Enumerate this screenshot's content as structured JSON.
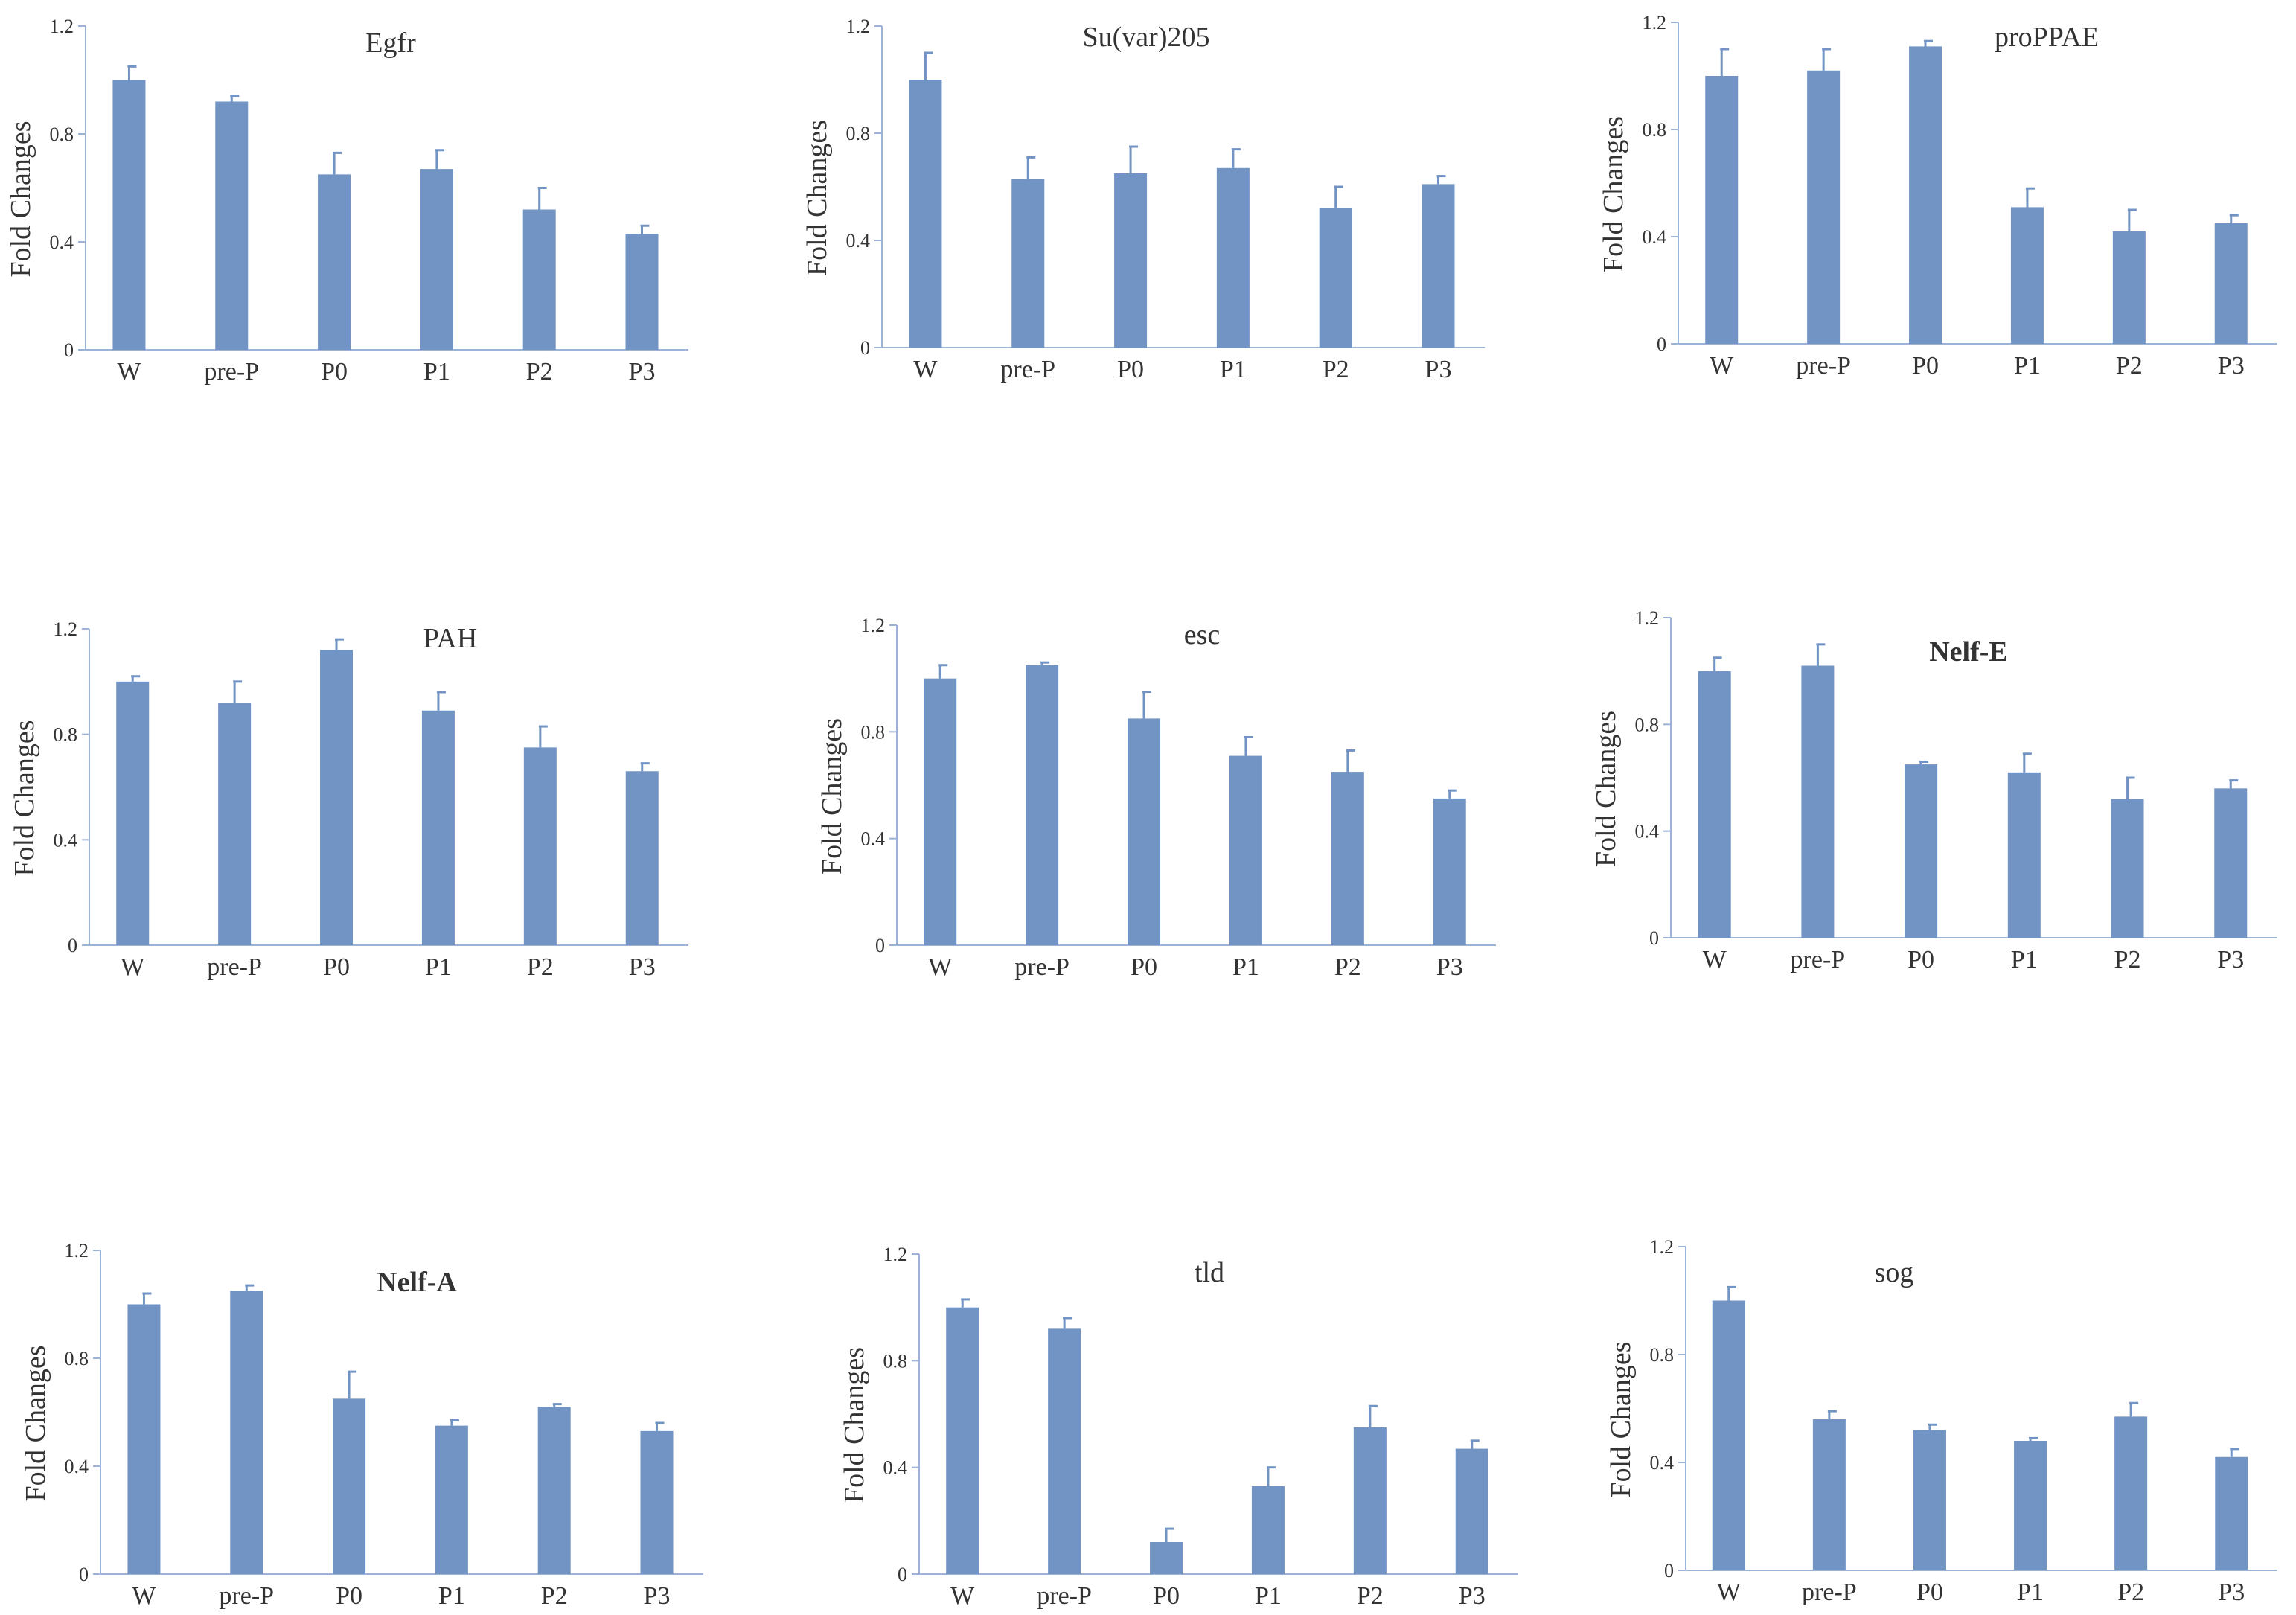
{
  "style": {
    "bar_color": "#7294c4",
    "axis_color": "#9db3d6",
    "text_color": "#333333"
  },
  "chart_data": [
    {
      "type": "bar",
      "title": "Egfr",
      "title_bold": false,
      "ylabel": "Fold Changes",
      "categories": [
        "W",
        "pre-P",
        "P0",
        "P1",
        "P2",
        "P3"
      ],
      "yticks": [
        "0",
        "0.4",
        "0.8",
        "1.2"
      ],
      "ylim": [
        0,
        1.2
      ],
      "values": [
        1.0,
        0.92,
        0.65,
        0.67,
        0.52,
        0.43
      ],
      "errors": [
        0.05,
        0.02,
        0.08,
        0.07,
        0.08,
        0.03
      ]
    },
    {
      "type": "bar",
      "title": "Su(var)205",
      "title_bold": false,
      "ylabel": "Fold Changes",
      "categories": [
        "W",
        "pre-P",
        "P0",
        "P1",
        "P2",
        "P3"
      ],
      "yticks": [
        "0",
        "0.4",
        "0.8",
        "1.2"
      ],
      "ylim": [
        0,
        1.2
      ],
      "values": [
        1.0,
        0.63,
        0.65,
        0.67,
        0.52,
        0.61
      ],
      "errors": [
        0.1,
        0.08,
        0.1,
        0.07,
        0.08,
        0.03
      ]
    },
    {
      "type": "bar",
      "title": "proPPAE",
      "title_bold": false,
      "ylabel": "Fold Changes",
      "categories": [
        "W",
        "pre-P",
        "P0",
        "P1",
        "P2",
        "P3"
      ],
      "yticks": [
        "0",
        "0.4",
        "0.8",
        "1.2"
      ],
      "ylim": [
        0,
        1.2
      ],
      "values": [
        1.0,
        1.02,
        1.11,
        0.51,
        0.42,
        0.45
      ],
      "errors": [
        0.1,
        0.08,
        0.02,
        0.07,
        0.08,
        0.03
      ]
    },
    {
      "type": "bar",
      "title": "PAH",
      "title_bold": false,
      "ylabel": "Fold Changes",
      "categories": [
        "W",
        "pre-P",
        "P0",
        "P1",
        "P2",
        "P3"
      ],
      "yticks": [
        "0",
        "0.4",
        "0.8",
        "1.2"
      ],
      "ylim": [
        0,
        1.2
      ],
      "values": [
        1.0,
        0.92,
        1.12,
        0.89,
        0.75,
        0.66
      ],
      "errors": [
        0.02,
        0.08,
        0.04,
        0.07,
        0.08,
        0.03
      ]
    },
    {
      "type": "bar",
      "title": "esc",
      "title_bold": false,
      "ylabel": "Fold Changes",
      "categories": [
        "W",
        "pre-P",
        "P0",
        "P1",
        "P2",
        "P3"
      ],
      "yticks": [
        "0",
        "0.4",
        "0.8",
        "1.2"
      ],
      "ylim": [
        0,
        1.2
      ],
      "values": [
        1.0,
        1.05,
        0.85,
        0.71,
        0.65,
        0.55
      ],
      "errors": [
        0.05,
        0.01,
        0.1,
        0.07,
        0.08,
        0.03
      ]
    },
    {
      "type": "bar",
      "title": "Nelf-E",
      "title_bold": true,
      "ylabel": "Fold Changes",
      "categories": [
        "W",
        "pre-P",
        "P0",
        "P1",
        "P2",
        "P3"
      ],
      "yticks": [
        "0",
        "0.4",
        "0.8",
        "1.2"
      ],
      "ylim": [
        0,
        1.2
      ],
      "values": [
        1.0,
        1.02,
        0.65,
        0.62,
        0.52,
        0.56
      ],
      "errors": [
        0.05,
        0.08,
        0.01,
        0.07,
        0.08,
        0.03
      ]
    },
    {
      "type": "bar",
      "title": "Nelf-A",
      "title_bold": true,
      "ylabel": "Fold Changes",
      "categories": [
        "W",
        "pre-P",
        "P0",
        "P1",
        "P2",
        "P3"
      ],
      "yticks": [
        "0",
        "0.4",
        "0.8",
        "1.2"
      ],
      "ylim": [
        0,
        1.2
      ],
      "values": [
        1.0,
        1.05,
        0.65,
        0.55,
        0.62,
        0.53
      ],
      "errors": [
        0.04,
        0.02,
        0.1,
        0.02,
        0.01,
        0.03
      ]
    },
    {
      "type": "bar",
      "title": "tld",
      "title_bold": false,
      "ylabel": "Fold Changes",
      "categories": [
        "W",
        "pre-P",
        "P0",
        "P1",
        "P2",
        "P3"
      ],
      "yticks": [
        "0",
        "0.4",
        "0.8",
        "1.2"
      ],
      "ylim": [
        0,
        1.2
      ],
      "values": [
        1.0,
        0.92,
        0.12,
        0.33,
        0.55,
        0.47
      ],
      "errors": [
        0.03,
        0.04,
        0.05,
        0.07,
        0.08,
        0.03
      ]
    },
    {
      "type": "bar",
      "title": "sog",
      "title_bold": false,
      "ylabel": "Fold Changes",
      "categories": [
        "W",
        "pre-P",
        "P0",
        "P1",
        "P2",
        "P3"
      ],
      "yticks": [
        "0",
        "0.4",
        "0.8",
        "1.2"
      ],
      "ylim": [
        0,
        1.2
      ],
      "values": [
        1.0,
        0.56,
        0.52,
        0.48,
        0.57,
        0.42
      ],
      "errors": [
        0.05,
        0.03,
        0.02,
        0.01,
        0.05,
        0.03
      ]
    }
  ]
}
